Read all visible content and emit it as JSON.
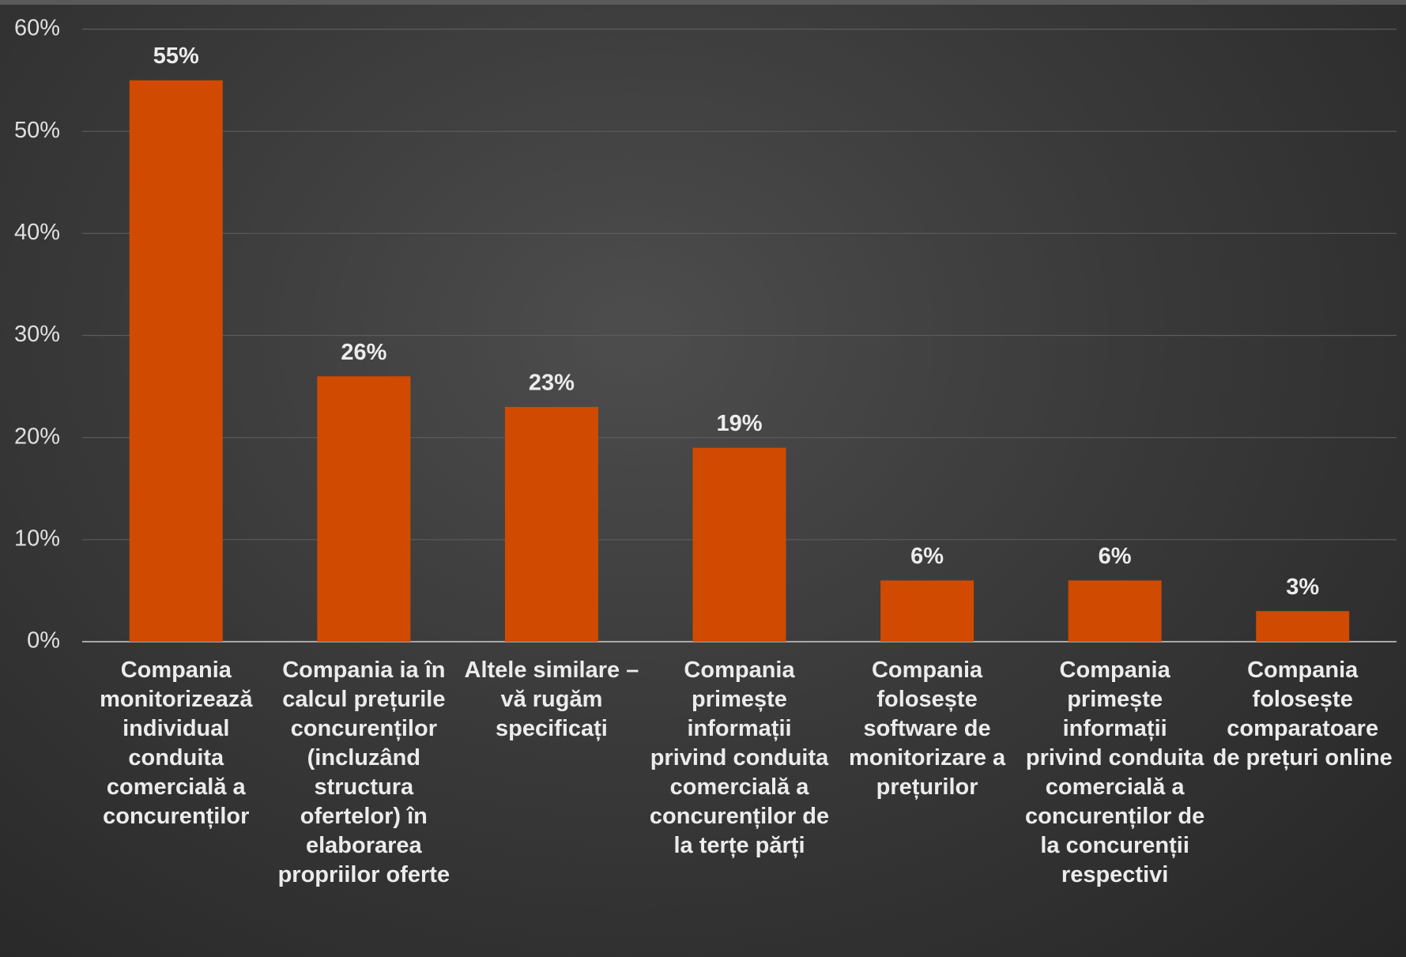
{
  "chart_data": {
    "type": "bar",
    "categories": [
      "Compania monitorizează individual conduita comercială a concurenților",
      "Compania ia în calcul prețurile concurenților (incluzând structura ofertelor) în elaborarea propriilor oferte",
      "Altele similare – vă rugăm specificați",
      "Compania primește informații privind conduita comercială a concurenților de la terțe părți",
      "Compania folosește software de monitorizare a prețurilor",
      "Compania primește informații privind conduita comercială a concurenților de la concurenții respectivi",
      "Compania folosește comparatoare de prețuri online"
    ],
    "values": [
      55,
      26,
      23,
      19,
      6,
      6,
      3
    ],
    "value_labels": [
      "55%",
      "26%",
      "23%",
      "19%",
      "6%",
      "6%",
      "3%"
    ],
    "color": "#d04a02",
    "ylim": [
      0,
      60
    ],
    "yticks": [
      {
        "value": 0,
        "label": "0%"
      },
      {
        "value": 10,
        "label": "10%"
      },
      {
        "value": 20,
        "label": "20%"
      },
      {
        "value": 30,
        "label": "30%"
      },
      {
        "value": 40,
        "label": "40%"
      },
      {
        "value": 50,
        "label": "50%"
      },
      {
        "value": 60,
        "label": "60%"
      }
    ],
    "grid": true
  }
}
